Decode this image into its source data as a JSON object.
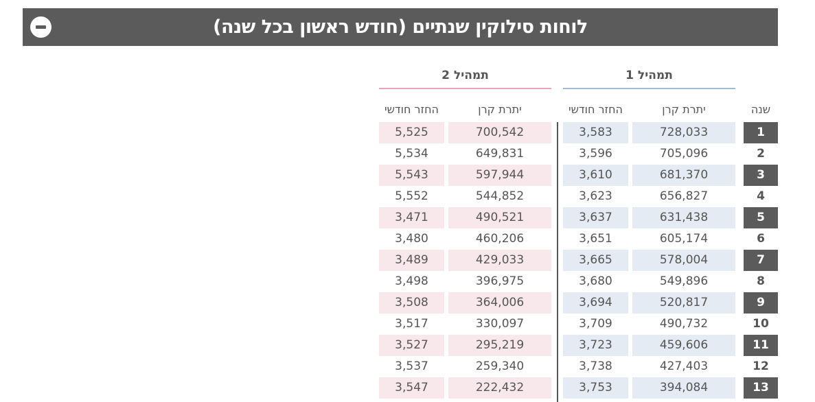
{
  "header": {
    "title": "לוחות סילוקין שנתיים (חודש ראשון בכל שנה)",
    "collapse_icon": "minus-circle-icon"
  },
  "groups": {
    "route1": {
      "label": "תמהיל 1",
      "color": "#9fbbd8"
    },
    "route2": {
      "label": "תמהיל 2",
      "color": "#e8a3b8"
    }
  },
  "columns": {
    "year": "שנה",
    "principal_balance": "יתרת קרן",
    "monthly_payment": "החזר חודשי"
  },
  "rows": [
    {
      "year": "1",
      "r1_principal": "728,033",
      "r1_payment": "3,583",
      "r2_principal": "700,542",
      "r2_payment": "5,525"
    },
    {
      "year": "2",
      "r1_principal": "705,096",
      "r1_payment": "3,596",
      "r2_principal": "649,831",
      "r2_payment": "5,534"
    },
    {
      "year": "3",
      "r1_principal": "681,370",
      "r1_payment": "3,610",
      "r2_principal": "597,944",
      "r2_payment": "5,543"
    },
    {
      "year": "4",
      "r1_principal": "656,827",
      "r1_payment": "3,623",
      "r2_principal": "544,852",
      "r2_payment": "5,552"
    },
    {
      "year": "5",
      "r1_principal": "631,438",
      "r1_payment": "3,637",
      "r2_principal": "490,521",
      "r2_payment": "3,471"
    },
    {
      "year": "6",
      "r1_principal": "605,174",
      "r1_payment": "3,651",
      "r2_principal": "460,206",
      "r2_payment": "3,480"
    },
    {
      "year": "7",
      "r1_principal": "578,004",
      "r1_payment": "3,665",
      "r2_principal": "429,033",
      "r2_payment": "3,489"
    },
    {
      "year": "8",
      "r1_principal": "549,896",
      "r1_payment": "3,680",
      "r2_principal": "396,975",
      "r2_payment": "3,498"
    },
    {
      "year": "9",
      "r1_principal": "520,817",
      "r1_payment": "3,694",
      "r2_principal": "364,006",
      "r2_payment": "3,508"
    },
    {
      "year": "10",
      "r1_principal": "490,732",
      "r1_payment": "3,709",
      "r2_principal": "330,097",
      "r2_payment": "3,517"
    },
    {
      "year": "11",
      "r1_principal": "459,606",
      "r1_payment": "3,723",
      "r2_principal": "295,219",
      "r2_payment": "3,527"
    },
    {
      "year": "12",
      "r1_principal": "427,403",
      "r1_payment": "3,738",
      "r2_principal": "259,340",
      "r2_payment": "3,537"
    },
    {
      "year": "13",
      "r1_principal": "394,084",
      "r1_payment": "3,753",
      "r2_principal": "222,432",
      "r2_payment": "3,547"
    }
  ]
}
